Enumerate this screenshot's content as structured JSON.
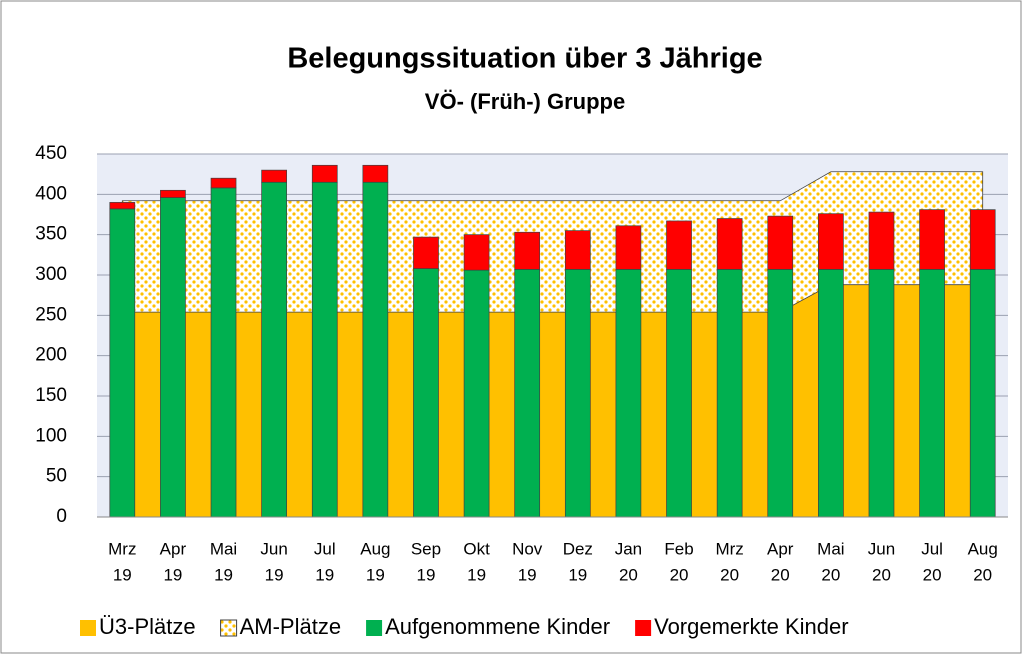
{
  "chart_data": {
    "type": "combo",
    "title": "Belegungssituation über 3 Jährige",
    "subtitle": "VÖ- (Früh-) Gruppe",
    "categories": [
      [
        "Mrz",
        "19"
      ],
      [
        "Apr",
        "19"
      ],
      [
        "Mai",
        "19"
      ],
      [
        "Jun",
        "19"
      ],
      [
        "Jul",
        "19"
      ],
      [
        "Aug",
        "19"
      ],
      [
        "Sep",
        "19"
      ],
      [
        "Okt",
        "19"
      ],
      [
        "Nov",
        "19"
      ],
      [
        "Dez",
        "19"
      ],
      [
        "Jan",
        "20"
      ],
      [
        "Feb",
        "20"
      ],
      [
        "Mrz",
        "20"
      ],
      [
        "Apr",
        "20"
      ],
      [
        "Mai",
        "20"
      ],
      [
        "Jun",
        "20"
      ],
      [
        "Jul",
        "20"
      ],
      [
        "Aug",
        "20"
      ]
    ],
    "series": [
      {
        "name": "Ü3-Plätze",
        "type": "area",
        "color": "#FFC000",
        "values": [
          254,
          254,
          254,
          254,
          254,
          254,
          254,
          254,
          254,
          254,
          254,
          254,
          254,
          254,
          288,
          288,
          288,
          288
        ]
      },
      {
        "name": "AM-Plätze",
        "type": "area",
        "pattern": "dots",
        "color": "#FFC000",
        "values": [
          138,
          138,
          138,
          138,
          138,
          138,
          138,
          138,
          138,
          138,
          138,
          138,
          138,
          138,
          140,
          140,
          140,
          140
        ]
      },
      {
        "name": "Aufgenommene Kinder",
        "type": "bar",
        "color": "#00B050",
        "values": [
          382,
          396,
          408,
          415,
          415,
          415,
          308,
          306,
          307,
          307,
          307,
          307,
          307,
          307,
          307,
          307,
          307,
          307
        ]
      },
      {
        "name": "Vorgemerkte Kinder",
        "type": "bar",
        "color": "#FF0000",
        "values": [
          8,
          9,
          12,
          15,
          21,
          21,
          39,
          44,
          46,
          48,
          54,
          60,
          63,
          66,
          69,
          71,
          74,
          74
        ]
      }
    ],
    "ylim": [
      0,
      450
    ],
    "yticks": [
      0,
      50,
      100,
      150,
      200,
      250,
      300,
      350,
      400,
      450
    ],
    "grid": true,
    "legend": "bottom"
  }
}
